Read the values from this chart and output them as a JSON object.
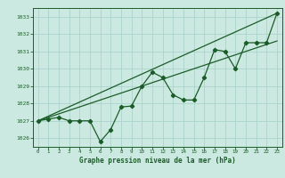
{
  "title": "Graphe pression niveau de la mer (hPa)",
  "bg_color": "#cce9e1",
  "grid_color": "#aad4cc",
  "line_color": "#1a5c28",
  "text_color": "#1a5c28",
  "xlim": [
    -0.5,
    23.5
  ],
  "ylim": [
    1025.5,
    1033.5
  ],
  "yticks": [
    1026,
    1027,
    1028,
    1029,
    1030,
    1031,
    1032,
    1033
  ],
  "xticks": [
    0,
    1,
    2,
    3,
    4,
    5,
    6,
    7,
    8,
    9,
    10,
    11,
    12,
    13,
    14,
    15,
    16,
    17,
    18,
    19,
    20,
    21,
    22,
    23
  ],
  "main_series": [
    1027.0,
    1027.1,
    1027.2,
    1027.0,
    1027.0,
    1027.0,
    1025.8,
    1026.5,
    1027.8,
    1027.85,
    1029.0,
    1029.8,
    1029.5,
    1028.5,
    1028.2,
    1028.2,
    1029.5,
    1031.1,
    1031.0,
    1030.0,
    1031.5,
    1031.5,
    1031.5,
    1033.2
  ],
  "trend_line1_x": [
    0,
    23
  ],
  "trend_line1_y": [
    1027.0,
    1033.2
  ],
  "trend_line2_x": [
    0,
    23
  ],
  "trend_line2_y": [
    1027.0,
    1031.6
  ]
}
